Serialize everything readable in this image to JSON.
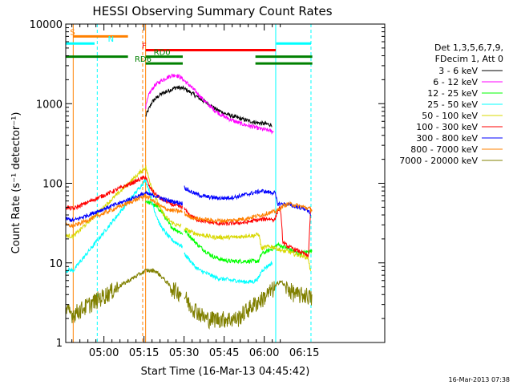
{
  "chart_data": {
    "type": "line",
    "title": "HESSI Observing Summary Count Rates",
    "xlabel": "Start Time (16-Mar-13 04:45:42)",
    "ylabel": "Count Rate (s⁻¹ detector⁻¹)",
    "yscale": "log",
    "ylim": [
      1,
      10000
    ],
    "xlim_min": [
      45.7,
      129.0
    ],
    "x_unit": "minutes after 04:00 UT",
    "x_ticks": [
      {
        "m": 60,
        "label": "05:00"
      },
      {
        "m": 75,
        "label": "05:15"
      },
      {
        "m": 90,
        "label": "05:30"
      },
      {
        "m": 105,
        "label": "05:45"
      },
      {
        "m": 120,
        "label": "06:00"
      },
      {
        "m": 135,
        "label": "06:15"
      }
    ],
    "y_ticks": [
      {
        "v": 1,
        "label": "1"
      },
      {
        "v": 10,
        "label": "10"
      },
      {
        "v": 100,
        "label": "100"
      },
      {
        "v": 1000,
        "label": "1000"
      },
      {
        "v": 10000,
        "label": "10000"
      }
    ],
    "legend_header": [
      "Det 1,3,5,6,7,9,",
      "FDecim 1, Att 0"
    ],
    "legend_placement": "right",
    "series": [
      {
        "name": "3 - 6 keV",
        "color": "#000000",
        "points": [
          [
            75.6,
            700
          ],
          [
            78,
            1050
          ],
          [
            81,
            1300
          ],
          [
            84,
            1450
          ],
          [
            87,
            1600
          ],
          [
            90,
            1550
          ],
          [
            93,
            1350
          ],
          [
            96,
            1150
          ],
          [
            99,
            1000
          ],
          [
            102,
            850
          ],
          [
            105,
            760
          ],
          [
            108,
            700
          ],
          [
            111,
            650
          ],
          [
            114,
            610
          ],
          [
            117,
            580
          ],
          [
            120,
            560
          ],
          [
            123,
            540
          ],
          [
            123.6,
            520
          ]
        ]
      },
      {
        "name": "6 - 12 keV",
        "color": "#ff00ff",
        "points": [
          [
            75.6,
            900
          ],
          [
            77,
            1350
          ],
          [
            79,
            1700
          ],
          [
            82,
            2000
          ],
          [
            85,
            2250
          ],
          [
            87,
            2300
          ],
          [
            89,
            2100
          ],
          [
            92,
            1700
          ],
          [
            95,
            1350
          ],
          [
            98,
            1050
          ],
          [
            101,
            850
          ],
          [
            104,
            720
          ],
          [
            107,
            640
          ],
          [
            110,
            580
          ],
          [
            113,
            540
          ],
          [
            116,
            510
          ],
          [
            119,
            480
          ],
          [
            122,
            460
          ],
          [
            123.6,
            440
          ]
        ]
      },
      {
        "name": "12 - 25 keV",
        "color": "#00ff00",
        "points": [
          [
            75.6,
            60
          ],
          [
            78,
            55
          ],
          [
            80,
            50
          ],
          [
            82,
            42
          ],
          [
            84,
            32
          ],
          [
            86,
            27
          ],
          [
            88,
            25
          ],
          [
            89.5,
            23
          ],
          [
            90,
            26
          ],
          [
            92,
            22
          ],
          [
            95,
            17
          ],
          [
            98,
            14
          ],
          [
            101,
            12
          ],
          [
            104,
            11
          ],
          [
            107,
            10.5
          ],
          [
            110,
            10.5
          ],
          [
            113,
            10.5
          ],
          [
            116,
            10.5
          ],
          [
            118,
            10.5
          ],
          [
            119,
            13
          ],
          [
            121,
            14
          ],
          [
            123,
            15
          ],
          [
            125,
            17
          ],
          [
            127,
            16
          ],
          [
            129,
            15
          ],
          [
            131,
            14
          ],
          [
            133,
            13
          ],
          [
            135,
            13.5
          ],
          [
            137,
            14
          ],
          [
            138,
            14
          ]
        ]
      },
      {
        "name": "25 - 50 keV",
        "color": "#00ffff",
        "points": [
          [
            45.7,
            8
          ],
          [
            47,
            8.2
          ],
          [
            48.5,
            8
          ],
          [
            75.6,
            110
          ],
          [
            77,
            80
          ],
          [
            79,
            45
          ],
          [
            81,
            30
          ],
          [
            83,
            24
          ],
          [
            85,
            20
          ],
          [
            87,
            18
          ],
          [
            89.5,
            16
          ],
          [
            90,
            13
          ],
          [
            92,
            11
          ],
          [
            94,
            9
          ],
          [
            96,
            8
          ],
          [
            98,
            7.5
          ],
          [
            100,
            7
          ],
          [
            102,
            6.5
          ],
          [
            104,
            6.3
          ],
          [
            106,
            6.2
          ],
          [
            108,
            6
          ],
          [
            110,
            6
          ],
          [
            112,
            5.8
          ],
          [
            114,
            5.8
          ],
          [
            116,
            5.8
          ],
          [
            118,
            6.5
          ],
          [
            119,
            8
          ],
          [
            121,
            9
          ],
          [
            123,
            10
          ]
        ]
      },
      {
        "name": "50 - 100 keV",
        "color": "#d8d800",
        "points": [
          [
            45.7,
            22
          ],
          [
            48.5,
            21.5
          ],
          [
            75.6,
            160
          ],
          [
            77,
            110
          ],
          [
            79,
            70
          ],
          [
            81,
            48
          ],
          [
            83,
            38
          ],
          [
            85,
            33
          ],
          [
            87,
            30
          ],
          [
            89,
            29
          ],
          [
            89.5,
            28
          ],
          [
            90,
            27
          ],
          [
            92,
            25
          ],
          [
            95,
            23
          ],
          [
            98,
            22
          ],
          [
            101,
            21
          ],
          [
            104,
            21
          ],
          [
            107,
            21
          ],
          [
            110,
            21
          ],
          [
            113,
            22
          ],
          [
            116,
            22
          ],
          [
            118,
            23
          ],
          [
            119,
            15
          ],
          [
            121,
            16
          ],
          [
            123,
            16
          ],
          [
            125,
            15
          ],
          [
            127,
            14
          ],
          [
            129,
            14
          ],
          [
            131,
            13
          ],
          [
            133,
            12.5
          ],
          [
            135,
            12
          ],
          [
            136.5,
            11.5
          ],
          [
            137.5,
            7
          ],
          [
            138,
            7
          ]
        ]
      },
      {
        "name": "100 - 300 keV",
        "color": "#ff0000",
        "points": [
          [
            45.7,
            50
          ],
          [
            48.5,
            48
          ],
          [
            75.6,
            120
          ],
          [
            77,
            90
          ],
          [
            79,
            75
          ],
          [
            81,
            65
          ],
          [
            83,
            60
          ],
          [
            85,
            55
          ],
          [
            87,
            52
          ],
          [
            89.5,
            50
          ],
          [
            90,
            48
          ],
          [
            92,
            40
          ],
          [
            95,
            35
          ],
          [
            98,
            33
          ],
          [
            101,
            32
          ],
          [
            104,
            31
          ],
          [
            107,
            31
          ],
          [
            110,
            32
          ],
          [
            113,
            32
          ],
          [
            116,
            34
          ],
          [
            119,
            35
          ],
          [
            121,
            36
          ],
          [
            124,
            35
          ],
          [
            125,
            45
          ],
          [
            126,
            50
          ],
          [
            127,
            18
          ],
          [
            129,
            16
          ],
          [
            131,
            15
          ],
          [
            133,
            14
          ],
          [
            135,
            13
          ],
          [
            136.5,
            12
          ],
          [
            137.5,
            60
          ],
          [
            138,
            65
          ]
        ]
      },
      {
        "name": "300 - 800 keV",
        "color": "#0000ff",
        "points": [
          [
            45.7,
            36
          ],
          [
            48.5,
            34
          ],
          [
            75.6,
            75
          ],
          [
            77,
            72
          ],
          [
            79,
            70
          ],
          [
            81,
            66
          ],
          [
            83,
            62
          ],
          [
            85,
            60
          ],
          [
            87,
            58
          ],
          [
            89.5,
            56
          ],
          [
            90,
            90
          ],
          [
            92,
            80
          ],
          [
            95,
            72
          ],
          [
            98,
            68
          ],
          [
            101,
            66
          ],
          [
            104,
            65
          ],
          [
            107,
            66
          ],
          [
            110,
            68
          ],
          [
            113,
            72
          ],
          [
            116,
            76
          ],
          [
            119,
            80
          ],
          [
            121,
            78
          ],
          [
            124,
            76
          ],
          [
            125,
            55
          ],
          [
            127,
            55
          ],
          [
            129,
            54
          ],
          [
            131,
            52
          ],
          [
            133,
            50
          ],
          [
            135,
            48
          ],
          [
            136.5,
            46
          ],
          [
            137.5,
            40
          ],
          [
            138,
            40
          ]
        ]
      },
      {
        "name": "800 - 7000 keV",
        "color": "#ff8000",
        "points": [
          [
            45.7,
            30
          ],
          [
            48.5,
            29
          ],
          [
            75.6,
            70
          ],
          [
            77,
            65
          ],
          [
            79,
            58
          ],
          [
            81,
            52
          ],
          [
            83,
            48
          ],
          [
            85,
            46
          ],
          [
            87,
            45
          ],
          [
            89.5,
            44
          ],
          [
            90,
            42
          ],
          [
            92,
            38
          ],
          [
            95,
            36
          ],
          [
            98,
            35
          ],
          [
            101,
            34
          ],
          [
            104,
            34
          ],
          [
            107,
            34
          ],
          [
            110,
            35
          ],
          [
            113,
            36
          ],
          [
            116,
            38
          ],
          [
            119,
            40
          ],
          [
            121,
            42
          ],
          [
            124,
            44
          ],
          [
            126,
            48
          ],
          [
            127,
            52
          ],
          [
            129,
            55
          ],
          [
            131,
            54
          ],
          [
            133,
            52
          ],
          [
            135,
            50
          ],
          [
            137,
            48
          ],
          [
            138,
            46
          ]
        ]
      },
      {
        "name": "7000 - 20000 keV",
        "color": "#808000",
        "points": [
          [
            45.7,
            2.5
          ],
          [
            48.5,
            2.3
          ],
          [
            75.6,
            8
          ],
          [
            79,
            8
          ],
          [
            81,
            7
          ],
          [
            83,
            6
          ],
          [
            85,
            5
          ],
          [
            87,
            4.5
          ],
          [
            89,
            4.2
          ],
          [
            89.5,
            5
          ],
          [
            90,
            4
          ],
          [
            92,
            3
          ],
          [
            95,
            2.5
          ],
          [
            98,
            2
          ],
          [
            101,
            2
          ],
          [
            104,
            2
          ],
          [
            107,
            2
          ],
          [
            110,
            2
          ],
          [
            113,
            2.5
          ],
          [
            116,
            3
          ],
          [
            119,
            3.5
          ],
          [
            121,
            4
          ],
          [
            124,
            5
          ],
          [
            126,
            6
          ],
          [
            128,
            5
          ],
          [
            130,
            4.5
          ],
          [
            132,
            4
          ],
          [
            134,
            4
          ],
          [
            136,
            4
          ],
          [
            138,
            3.5
          ]
        ]
      }
    ],
    "flag_bars": [
      {
        "label": "S",
        "color": "#ff8000",
        "y": 7000,
        "segments": [
          [
            48.5,
            69
          ]
        ],
        "label_m": 47.3
      },
      {
        "label": "N",
        "color": "#00ffff",
        "y": 5700,
        "segments": [
          [
            45.7,
            56.5
          ],
          [
            124.5,
            137.5
          ]
        ],
        "label_m": 61.5
      },
      {
        "label": "F",
        "color": "#ff0000",
        "y": 4700,
        "segments": [
          [
            75.6,
            124.3
          ]
        ],
        "label_m": 74.2
      },
      {
        "label": "RD0",
        "color": "#008000",
        "y": 3900,
        "segments": [
          [
            45.7,
            69
          ],
          [
            75.6,
            89.5
          ],
          [
            116.7,
            138
          ]
        ],
        "label_m": 78.6
      },
      {
        "label": "RD6",
        "color": "#008000",
        "y": 3200,
        "segments": [
          [
            75.6,
            89.5
          ],
          [
            116.7,
            138
          ]
        ],
        "label_m": 71.5
      }
    ],
    "vertical_markers": [
      {
        "m": 48.5,
        "color": "#ff8000",
        "style": "solid"
      },
      {
        "m": 57.5,
        "color": "#00ffff",
        "style": "dashed"
      },
      {
        "m": 74.5,
        "color": "#ff8000",
        "style": "dashed"
      },
      {
        "m": 75.6,
        "color": "#ff8000",
        "style": "solid"
      },
      {
        "m": 124.3,
        "color": "#00ffff",
        "style": "solid"
      },
      {
        "m": 137.5,
        "color": "#00ffff",
        "style": "dashed"
      }
    ],
    "footer_date": "16-Mar-2013 07:38"
  }
}
